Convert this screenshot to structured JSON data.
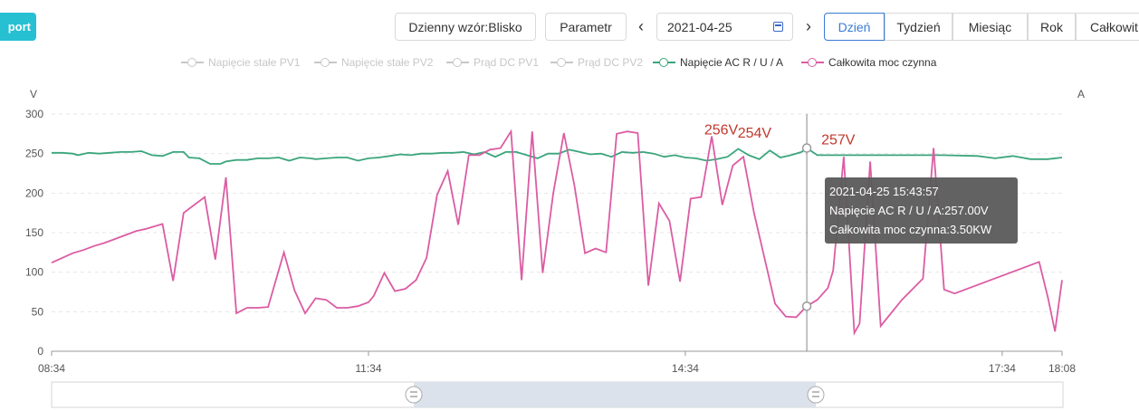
{
  "toolbar": {
    "export_label": "port",
    "pattern_label": "Dzienny wzór:Blisko",
    "param_label": "Parametr",
    "prev_icon": "chevron-left-icon",
    "next_icon": "chevron-right-icon",
    "date_value": "2021-04-25",
    "calendar_icon": "calendar-icon",
    "periods": [
      "Dzień",
      "Tydzień",
      "Miesiąc",
      "Rok",
      "Całkowit"
    ],
    "active_period": "Dzień"
  },
  "legend": [
    {
      "label": "Napięcie stałe PV1",
      "active": false,
      "color": "#c7c7c7"
    },
    {
      "label": "Napięcie stałe PV2",
      "active": false,
      "color": "#c7c7c7"
    },
    {
      "label": "Prąd DC PV1",
      "active": false,
      "color": "#c7c7c7"
    },
    {
      "label": "Prąd DC PV2",
      "active": false,
      "color": "#c7c7c7"
    },
    {
      "label": "Napięcie AC R / U / A",
      "active": true,
      "color": "#3aa57c"
    },
    {
      "label": "Całkowita moc czynna",
      "active": true,
      "color": "#db5ca3"
    }
  ],
  "tooltip": {
    "time": "2021-04-25 15:43:57",
    "line1": "Napięcie AC R / U / A:257.00V",
    "line2": "Całkowita moc czynna:3.50KW"
  },
  "chart_data": {
    "type": "line",
    "x_start": "08:34",
    "x_end": "18:08",
    "x_ticks": [
      "08:34",
      "11:34",
      "14:34",
      "17:34",
      "18:08"
    ],
    "y_left_label": "V",
    "y_right_label": "A",
    "ylim": [
      0,
      300
    ],
    "y_ticks": [
      0,
      50,
      100,
      150,
      200,
      250,
      300
    ],
    "grid": true,
    "hover_time": "15:43",
    "annotations": [
      {
        "text": "256V",
        "x": "15:05",
        "y": 256
      },
      {
        "text": "254V",
        "x": "15:25",
        "y": 254
      },
      {
        "text": "257V",
        "x": "15:43",
        "y": 257
      }
    ],
    "series": [
      {
        "name": "Napięcie AC R / U / A",
        "color": "#3aa57c",
        "points": [
          [
            "08:34",
            251
          ],
          [
            "08:40",
            251
          ],
          [
            "08:46",
            250
          ],
          [
            "08:49",
            248
          ],
          [
            "08:55",
            251
          ],
          [
            "09:01",
            250
          ],
          [
            "09:07",
            251
          ],
          [
            "09:13",
            252
          ],
          [
            "09:19",
            252
          ],
          [
            "09:25",
            253
          ],
          [
            "09:31",
            248
          ],
          [
            "09:37",
            247
          ],
          [
            "09:43",
            252
          ],
          [
            "09:49",
            252
          ],
          [
            "09:52",
            245
          ],
          [
            "09:58",
            244
          ],
          [
            "10:04",
            237
          ],
          [
            "10:10",
            237
          ],
          [
            "10:13",
            240
          ],
          [
            "10:19",
            242
          ],
          [
            "10:25",
            242
          ],
          [
            "10:31",
            244
          ],
          [
            "10:37",
            244
          ],
          [
            "10:43",
            245
          ],
          [
            "10:49",
            241
          ],
          [
            "10:55",
            245
          ],
          [
            "11:01",
            244
          ],
          [
            "11:04",
            243
          ],
          [
            "11:10",
            244
          ],
          [
            "11:16",
            245
          ],
          [
            "11:22",
            245
          ],
          [
            "11:28",
            241
          ],
          [
            "11:34",
            244
          ],
          [
            "11:40",
            245
          ],
          [
            "11:46",
            247
          ],
          [
            "11:52",
            249
          ],
          [
            "11:58",
            248
          ],
          [
            "12:04",
            250
          ],
          [
            "12:10",
            250
          ],
          [
            "12:16",
            251
          ],
          [
            "12:22",
            251
          ],
          [
            "12:28",
            252
          ],
          [
            "12:34",
            249
          ],
          [
            "12:40",
            252
          ],
          [
            "12:46",
            246
          ],
          [
            "12:52",
            252
          ],
          [
            "12:58",
            252
          ],
          [
            "13:04",
            248
          ],
          [
            "13:10",
            244
          ],
          [
            "13:16",
            250
          ],
          [
            "13:22",
            250
          ],
          [
            "13:28",
            255
          ],
          [
            "13:34",
            252
          ],
          [
            "13:40",
            249
          ],
          [
            "13:46",
            250
          ],
          [
            "13:52",
            246
          ],
          [
            "13:58",
            252
          ],
          [
            "14:04",
            251
          ],
          [
            "14:10",
            252
          ],
          [
            "14:16",
            250
          ],
          [
            "14:22",
            246
          ],
          [
            "14:28",
            248
          ],
          [
            "14:34",
            245
          ],
          [
            "14:40",
            244
          ],
          [
            "14:46",
            241
          ],
          [
            "14:52",
            243
          ],
          [
            "14:58",
            246
          ],
          [
            "15:04",
            256
          ],
          [
            "15:10",
            248
          ],
          [
            "15:16",
            243
          ],
          [
            "15:22",
            254
          ],
          [
            "15:28",
            245
          ],
          [
            "15:34",
            248
          ],
          [
            "15:40",
            252
          ],
          [
            "15:43",
            257
          ],
          [
            "15:49",
            248
          ],
          [
            "16:00",
            248
          ],
          [
            "16:30",
            248
          ],
          [
            "17:00",
            248
          ],
          [
            "17:20",
            247
          ],
          [
            "17:30",
            244
          ],
          [
            "17:40",
            247
          ],
          [
            "17:50",
            243
          ],
          [
            "18:00",
            243
          ],
          [
            "18:08",
            245
          ]
        ]
      },
      {
        "name": "Całkowita moc czynna",
        "color": "#db5ca3",
        "points": [
          [
            "08:34",
            112
          ],
          [
            "08:40",
            118
          ],
          [
            "08:46",
            124
          ],
          [
            "08:52",
            128
          ],
          [
            "08:58",
            133
          ],
          [
            "09:04",
            137
          ],
          [
            "09:10",
            142
          ],
          [
            "09:16",
            147
          ],
          [
            "09:22",
            152
          ],
          [
            "09:28",
            155
          ],
          [
            "09:31",
            157
          ],
          [
            "09:37",
            161
          ],
          [
            "09:43",
            89
          ],
          [
            "09:49",
            175
          ],
          [
            "09:55",
            185
          ],
          [
            "10:01",
            195
          ],
          [
            "10:07",
            116
          ],
          [
            "10:13",
            220
          ],
          [
            "10:19",
            48
          ],
          [
            "10:25",
            55
          ],
          [
            "10:31",
            55
          ],
          [
            "10:37",
            56
          ],
          [
            "10:46",
            125
          ],
          [
            "10:52",
            77
          ],
          [
            "10:58",
            48
          ],
          [
            "11:04",
            67
          ],
          [
            "11:10",
            65
          ],
          [
            "11:16",
            55
          ],
          [
            "11:22",
            55
          ],
          [
            "11:28",
            57
          ],
          [
            "11:34",
            62
          ],
          [
            "11:37",
            70
          ],
          [
            "11:43",
            99
          ],
          [
            "11:49",
            76
          ],
          [
            "11:55",
            79
          ],
          [
            "12:01",
            90
          ],
          [
            "12:07",
            118
          ],
          [
            "12:13",
            198
          ],
          [
            "12:19",
            228
          ],
          [
            "12:25",
            160
          ],
          [
            "12:31",
            248
          ],
          [
            "12:37",
            248
          ],
          [
            "12:43",
            255
          ],
          [
            "12:49",
            257
          ],
          [
            "12:55",
            278
          ],
          [
            "13:01",
            90
          ],
          [
            "13:07",
            278
          ],
          [
            "13:13",
            99
          ],
          [
            "13:19",
            200
          ],
          [
            "13:25",
            276
          ],
          [
            "13:31",
            210
          ],
          [
            "13:37",
            124
          ],
          [
            "13:43",
            130
          ],
          [
            "13:49",
            125
          ],
          [
            "13:55",
            275
          ],
          [
            "14:01",
            278
          ],
          [
            "14:07",
            276
          ],
          [
            "14:13",
            83
          ],
          [
            "14:19",
            187
          ],
          [
            "14:25",
            165
          ],
          [
            "14:31",
            88
          ],
          [
            "14:37",
            193
          ],
          [
            "14:43",
            195
          ],
          [
            "14:49",
            272
          ],
          [
            "14:55",
            185
          ],
          [
            "15:01",
            235
          ],
          [
            "15:07",
            246
          ],
          [
            "15:13",
            175
          ],
          [
            "15:25",
            60
          ],
          [
            "15:31",
            44
          ],
          [
            "15:37",
            43
          ],
          [
            "15:43",
            57
          ],
          [
            "15:49",
            65
          ],
          [
            "15:55",
            80
          ],
          [
            "15:58",
            102
          ],
          [
            "16:04",
            246
          ],
          [
            "16:10",
            23
          ],
          [
            "16:13",
            35
          ],
          [
            "16:19",
            240
          ],
          [
            "16:25",
            32
          ],
          [
            "16:37",
            65
          ],
          [
            "16:49",
            92
          ],
          [
            "16:55",
            257
          ],
          [
            "17:01",
            78
          ],
          [
            "17:07",
            73
          ],
          [
            "17:55",
            113
          ],
          [
            "18:00",
            68
          ],
          [
            "18:04",
            25
          ],
          [
            "18:08",
            90
          ]
        ]
      }
    ]
  }
}
